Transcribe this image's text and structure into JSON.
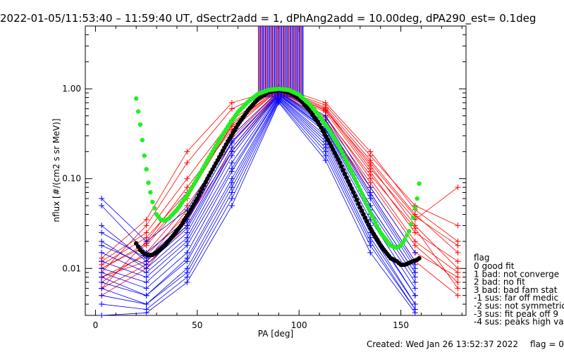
{
  "header": {
    "title": "2022-01-05/11:53:40 – 11:59:40 UT, dSectr2add = 1, dPhAng2add = 10.00deg, dPA290_est=    0.1deg"
  },
  "footer": {
    "created": "Created: Wed Jan 26 13:52:37 2022",
    "flag": "flag = 0"
  },
  "legend": {
    "title": "flag",
    "items": [
      " 0 good fit",
      " 1 bad: not converge",
      " 2 bad: no fit",
      " 3 bad: bad fam stat",
      "-1 sus: far off medic",
      "-2 sus: not symmetric",
      "-3 sus: fit peak off 9",
      "-4 sus: peaks high va"
    ]
  },
  "colors": {
    "red": "#ff0000",
    "blue": "#0000ff",
    "green_fit": "#22ee22",
    "black_fit": "#000000"
  },
  "chart_data": {
    "type": "line",
    "title": "2022-01-05/11:53:40 – 11:59:40 UT, dSectr2add = 1, dPhAng2add = 10.00deg, dPA290_est=    0.1deg",
    "xlabel": "PA [deg]",
    "ylabel": "nflux [#/(cm2 s sr MeV)]",
    "xlim": [
      -5,
      182
    ],
    "ylim": [
      0.003,
      5.0
    ],
    "yscale": "log",
    "xticks": [
      0,
      50,
      100,
      150
    ],
    "xtick_labels": [
      "0",
      "50",
      "100",
      "150"
    ],
    "yticks": [
      0.01,
      0.1,
      1.0
    ],
    "ytick_labels": [
      "0.01",
      "0.10",
      "1.00"
    ],
    "pa_bins": [
      3,
      25,
      45,
      67,
      90,
      113,
      135,
      157,
      178
    ],
    "series": [
      {
        "group": "red spectra (bins)",
        "color": "#ff0000",
        "lines": [
          [
            0.008,
            0.012,
            0.045,
            0.3,
            0.95,
            0.55,
            0.12,
            0.025,
            0.012
          ],
          [
            0.01,
            0.018,
            0.06,
            0.4,
            1.0,
            0.6,
            0.14,
            0.03,
            0.01
          ],
          [
            0.006,
            0.02,
            0.08,
            0.35,
            0.98,
            0.5,
            0.1,
            0.02,
            0.009
          ],
          [
            0.012,
            0.025,
            0.1,
            0.45,
            1.02,
            0.62,
            0.16,
            0.04,
            0.015
          ],
          [
            0.007,
            0.015,
            0.05,
            0.25,
            0.92,
            0.45,
            0.09,
            0.018,
            0.007
          ],
          [
            0.009,
            0.03,
            0.15,
            0.6,
            1.05,
            0.7,
            0.2,
            0.045,
            0.02
          ],
          [
            0.005,
            0.01,
            0.035,
            0.2,
            0.9,
            0.4,
            0.08,
            0.015,
            0.008
          ],
          [
            0.011,
            0.022,
            0.07,
            0.38,
            0.97,
            0.58,
            0.13,
            0.035,
            0.08
          ],
          [
            0.008,
            0.014,
            0.04,
            0.28,
            0.94,
            0.48,
            0.11,
            0.028,
            0.006
          ],
          [
            0.013,
            0.035,
            0.2,
            0.7,
            1.0,
            0.66,
            0.18,
            0.05,
            0.03
          ],
          [
            0.006,
            0.011,
            0.03,
            0.22,
            0.93,
            0.42,
            0.07,
            0.012,
            0.005
          ],
          [
            0.01,
            0.019,
            0.065,
            0.42,
            0.99,
            0.57,
            0.15,
            0.038,
            0.018
          ]
        ]
      },
      {
        "group": "blue spectra (bins)",
        "color": "#0000ff",
        "lines": [
          [
            0.06,
            0.02,
            0.045,
            0.3,
            0.95,
            0.5,
            0.08,
            0.015,
            null
          ],
          [
            0.05,
            0.015,
            0.035,
            0.25,
            0.92,
            0.45,
            0.07,
            0.012,
            null
          ],
          [
            0.03,
            0.012,
            0.03,
            0.22,
            0.9,
            0.4,
            0.06,
            0.01,
            null
          ],
          [
            0.02,
            0.01,
            0.025,
            0.2,
            0.88,
            0.38,
            0.05,
            0.009,
            null
          ],
          [
            0.015,
            0.009,
            0.022,
            0.18,
            0.86,
            0.35,
            0.045,
            0.008,
            null
          ],
          [
            0.012,
            0.008,
            0.02,
            0.15,
            0.85,
            0.33,
            0.04,
            0.007,
            null
          ],
          [
            0.01,
            0.007,
            0.018,
            0.13,
            0.83,
            0.3,
            0.035,
            0.006,
            null
          ],
          [
            0.009,
            0.006,
            0.015,
            0.12,
            0.82,
            0.28,
            0.03,
            0.005,
            null
          ],
          [
            0.008,
            0.005,
            0.013,
            0.1,
            0.8,
            0.26,
            0.028,
            0.005,
            null
          ],
          [
            0.007,
            0.005,
            0.012,
            0.09,
            0.78,
            0.24,
            0.025,
            0.004,
            null
          ],
          [
            0.006,
            0.004,
            0.01,
            0.08,
            0.76,
            0.22,
            0.022,
            0.004,
            null
          ],
          [
            0.005,
            0.004,
            0.009,
            0.07,
            0.75,
            0.2,
            0.02,
            0.0035,
            null
          ],
          [
            0.004,
            0.0035,
            0.008,
            0.06,
            0.72,
            0.18,
            0.018,
            0.0035,
            null
          ],
          [
            0.003,
            0.0032,
            0.007,
            0.05,
            0.7,
            0.16,
            0.015,
            0.0032,
            null
          ],
          [
            0.018,
            0.011,
            0.028,
            0.2,
            0.87,
            0.36,
            0.05,
            0.009,
            null
          ],
          [
            0.025,
            0.013,
            0.033,
            0.26,
            0.91,
            0.42,
            0.065,
            0.011,
            null
          ]
        ]
      },
      {
        "name": "",
        "group": "green fit curve",
        "color": "#22ee22",
        "x": [
          20,
          22,
          24,
          26,
          28,
          30,
          32,
          34,
          36,
          40,
          45,
          50,
          55,
          60,
          65,
          70,
          75,
          80,
          85,
          90,
          95,
          100,
          105,
          110,
          115,
          120,
          125,
          130,
          135,
          140,
          145,
          148,
          150,
          152,
          154,
          156,
          158,
          159
        ],
        "y": [
          0.78,
          0.4,
          0.18,
          0.09,
          0.055,
          0.04,
          0.035,
          0.034,
          0.036,
          0.045,
          0.065,
          0.1,
          0.16,
          0.25,
          0.38,
          0.55,
          0.72,
          0.88,
          0.97,
          1.0,
          0.97,
          0.86,
          0.68,
          0.5,
          0.34,
          0.22,
          0.13,
          0.075,
          0.042,
          0.025,
          0.018,
          0.017,
          0.018,
          0.021,
          0.026,
          0.037,
          0.06,
          0.088
        ]
      },
      {
        "name": "",
        "group": "black fit curve",
        "color": "#000000",
        "x": [
          20,
          22,
          24,
          26,
          28,
          30,
          34,
          38,
          42,
          46,
          50,
          55,
          60,
          65,
          70,
          75,
          80,
          85,
          90,
          95,
          100,
          105,
          110,
          115,
          120,
          125,
          130,
          135,
          140,
          145,
          148,
          150,
          152,
          154,
          156,
          158,
          159
        ],
        "y": [
          0.019,
          0.016,
          0.0145,
          0.014,
          0.0142,
          0.015,
          0.018,
          0.023,
          0.03,
          0.042,
          0.06,
          0.1,
          0.16,
          0.26,
          0.4,
          0.58,
          0.78,
          0.92,
          0.97,
          0.92,
          0.78,
          0.58,
          0.4,
          0.25,
          0.15,
          0.085,
          0.048,
          0.028,
          0.018,
          0.013,
          0.012,
          0.011,
          0.011,
          0.0115,
          0.012,
          0.0125,
          0.013
        ]
      }
    ],
    "center_spikes": {
      "x_from": 80,
      "x_to": 102,
      "y_from": 0.8,
      "y_to": 5.0
    }
  }
}
